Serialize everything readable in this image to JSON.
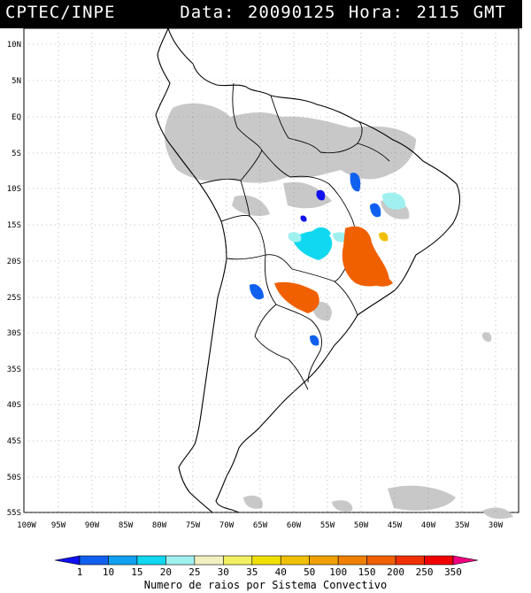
{
  "header": {
    "organization": "CPTEC/INPE",
    "datetime": "Data: 20090125 Hora: 2115 GMT"
  },
  "map": {
    "lat_labels": [
      "10N",
      "5N",
      "EQ",
      "5S",
      "10S",
      "15S",
      "20S",
      "25S",
      "30S",
      "35S",
      "40S",
      "45S",
      "50S",
      "55S"
    ],
    "lon_labels": [
      "100W",
      "95W",
      "90W",
      "85W",
      "80W",
      "75W",
      "70W",
      "65W",
      "60W",
      "55W",
      "50W",
      "45W",
      "40W",
      "35W",
      "30W"
    ],
    "lon_range": [
      -100,
      -27
    ],
    "lat_range": [
      -56,
      12
    ],
    "grid": true,
    "colors": {
      "land_outline": "#000000",
      "cloud": "#c8c8c8",
      "grid": "#888888"
    }
  },
  "colorbar": {
    "title": "Numero de raios por Sistema Convectivo",
    "ticks": [
      "1",
      "10",
      "15",
      "20",
      "25",
      "30",
      "35",
      "40",
      "50",
      "100",
      "150",
      "200",
      "250",
      "350"
    ],
    "colors": [
      "#1010f0",
      "#1060f0",
      "#10a0f0",
      "#10d8f0",
      "#a0f0f0",
      "#f0f0c0",
      "#f0f060",
      "#f0e000",
      "#f0c000",
      "#f0a000",
      "#f08000",
      "#f06000",
      "#f03000",
      "#f00000",
      "#f00080"
    ]
  }
}
